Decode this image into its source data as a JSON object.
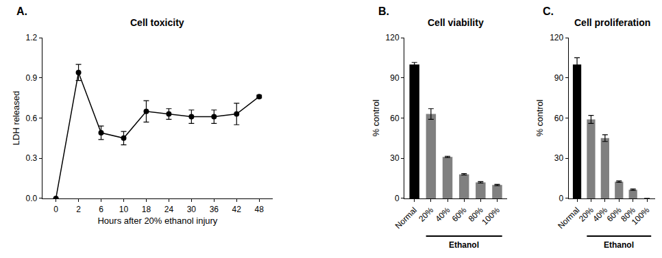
{
  "chart_data": [
    {
      "type": "line",
      "title": "Cell toxicity",
      "x_label": "Hours after 20% ethanol injury",
      "y_label": "LDH released",
      "categories": [
        "0",
        "2",
        "6",
        "10",
        "18",
        "24",
        "30",
        "36",
        "42",
        "48"
      ],
      "values": [
        0,
        0.94,
        0.49,
        0.45,
        0.65,
        0.63,
        0.61,
        0.61,
        0.63,
        0.76
      ],
      "errors": [
        0,
        0.06,
        0.05,
        0.05,
        0.08,
        0.04,
        0.05,
        0.05,
        0.08,
        0.01
      ],
      "color": "#000000",
      "marker": "circle",
      "grid": false,
      "ylim": [
        0,
        1.2
      ],
      "yticks": [
        {
          "value": 0,
          "label": "0.0"
        },
        {
          "value": 0.3,
          "label": "0.3"
        },
        {
          "value": 0.6,
          "label": "0.6"
        },
        {
          "value": 0.9,
          "label": "0.9"
        },
        {
          "value": 1.2,
          "label": "1.2"
        }
      ],
      "annotations": [
        {
          "text": "A."
        }
      ]
    },
    {
      "type": "bar",
      "title": "Cell viability",
      "y_label": "% control",
      "categories": [
        "Normal",
        "20%",
        "40%",
        "60%",
        "80%",
        "100%"
      ],
      "values": [
        100,
        63,
        31,
        18,
        12,
        10
      ],
      "errors": [
        1.5,
        4,
        0.5,
        0.5,
        0.5,
        0.5
      ],
      "colors": [
        "#000000",
        "#808080",
        "#808080",
        "#808080",
        "#808080",
        "#808080"
      ],
      "grid": false,
      "ylim": [
        0,
        120
      ],
      "yticks": [
        0,
        30,
        60,
        90,
        120
      ],
      "annotations": [
        {
          "text": "B."
        },
        {
          "text": "Ethanol",
          "span": [
            "20%",
            "100%"
          ]
        }
      ]
    },
    {
      "type": "bar",
      "title": "Cell proliferation",
      "y_label": "% control",
      "categories": [
        "Normal",
        "20%",
        "40%",
        "60%",
        "80%",
        "100%"
      ],
      "values": [
        100,
        59,
        45,
        12.5,
        6.5,
        0
      ],
      "errors": [
        5,
        3,
        2.5,
        0.5,
        0.5,
        0
      ],
      "colors": [
        "#000000",
        "#808080",
        "#808080",
        "#808080",
        "#808080",
        "#808080"
      ],
      "grid": false,
      "ylim": [
        0,
        120
      ],
      "yticks": [
        0,
        30,
        60,
        90,
        120
      ],
      "annotations": [
        {
          "text": "C."
        },
        {
          "text": "Ethanol",
          "span": [
            "20%",
            "100%"
          ]
        }
      ]
    }
  ]
}
